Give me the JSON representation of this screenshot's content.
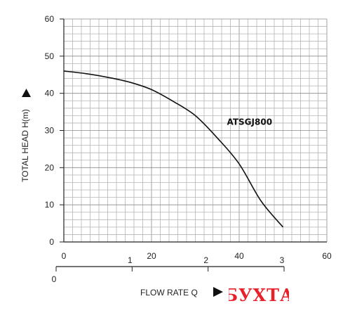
{
  "chart_data": {
    "type": "line",
    "ylabel": "TOTAL HEAD H(m)",
    "xlabel": "FLOW RATE Q",
    "x_ticks": [
      "0",
      "20",
      "40",
      "60"
    ],
    "x_range": [
      0,
      60
    ],
    "y_ticks": [
      "0",
      "10",
      "20",
      "30",
      "40",
      "50",
      "60"
    ],
    "y_range": [
      0,
      60
    ],
    "secondary_x_ticks": [
      "0",
      "1",
      "2",
      "3"
    ],
    "secondary_x_range": [
      0,
      3
    ],
    "grid": true,
    "series": [
      {
        "name": "ATSGJ800",
        "points": [
          {
            "x": 0,
            "y": 46
          },
          {
            "x": 5,
            "y": 45.3
          },
          {
            "x": 10,
            "y": 44.3
          },
          {
            "x": 15,
            "y": 43
          },
          {
            "x": 20,
            "y": 41
          },
          {
            "x": 25,
            "y": 37.8
          },
          {
            "x": 30,
            "y": 34
          },
          {
            "x": 35,
            "y": 28
          },
          {
            "x": 40,
            "y": 21
          },
          {
            "x": 45,
            "y": 11
          },
          {
            "x": 50,
            "y": 4
          }
        ]
      }
    ]
  },
  "watermark": {
    "text": "БУХТА",
    "color": "#e8202a"
  }
}
